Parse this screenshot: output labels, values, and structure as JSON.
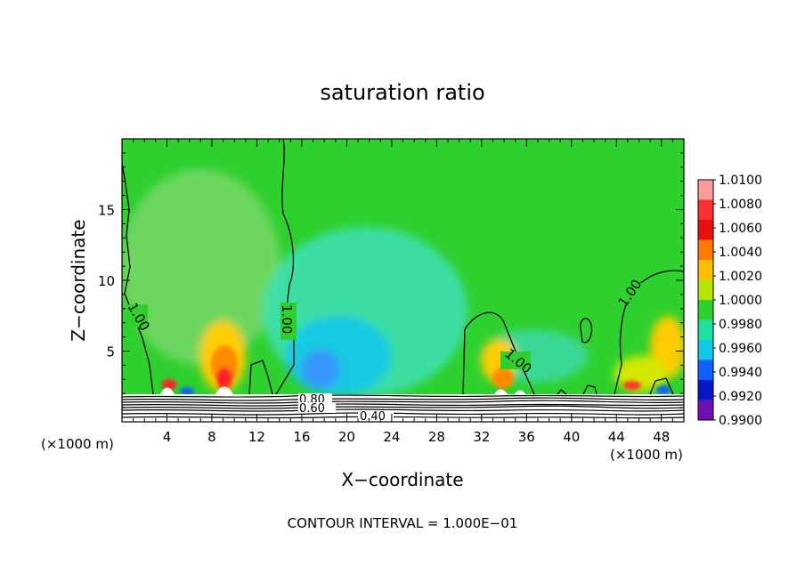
{
  "chart_data": {
    "type": "heatmap",
    "title": "saturation ratio",
    "xlabel": "X−coordinate",
    "ylabel": "Z−coordinate",
    "x_unit": "(×1000 m)",
    "xlim": [
      0,
      50
    ],
    "ylim": [
      0,
      20
    ],
    "x_ticks": [
      4,
      8,
      12,
      16,
      20,
      24,
      28,
      32,
      36,
      40,
      44,
      48
    ],
    "y_ticks": [
      5,
      10,
      15
    ],
    "colorbar": {
      "levels": [
        "1.0100",
        "1.0080",
        "1.0060",
        "1.0040",
        "1.0020",
        "1.0000",
        "0.9980",
        "0.9960",
        "0.9940",
        "0.9920",
        "0.9900"
      ],
      "colors": [
        "#ff9a9a",
        "#ff3030",
        "#e81010",
        "#ff7a00",
        "#ffbe00",
        "#b4e600",
        "#2ed02e",
        "#1ee0a0",
        "#10c8e8",
        "#1060ff",
        "#0818c8",
        "#7010b0"
      ]
    },
    "contour_labels": [
      "1.00",
      "1.00",
      "1.00",
      "1.00",
      "0.80",
      "0.60",
      "0.40"
    ],
    "footer": "CONTOUR INTERVAL = 1.000E−01"
  }
}
